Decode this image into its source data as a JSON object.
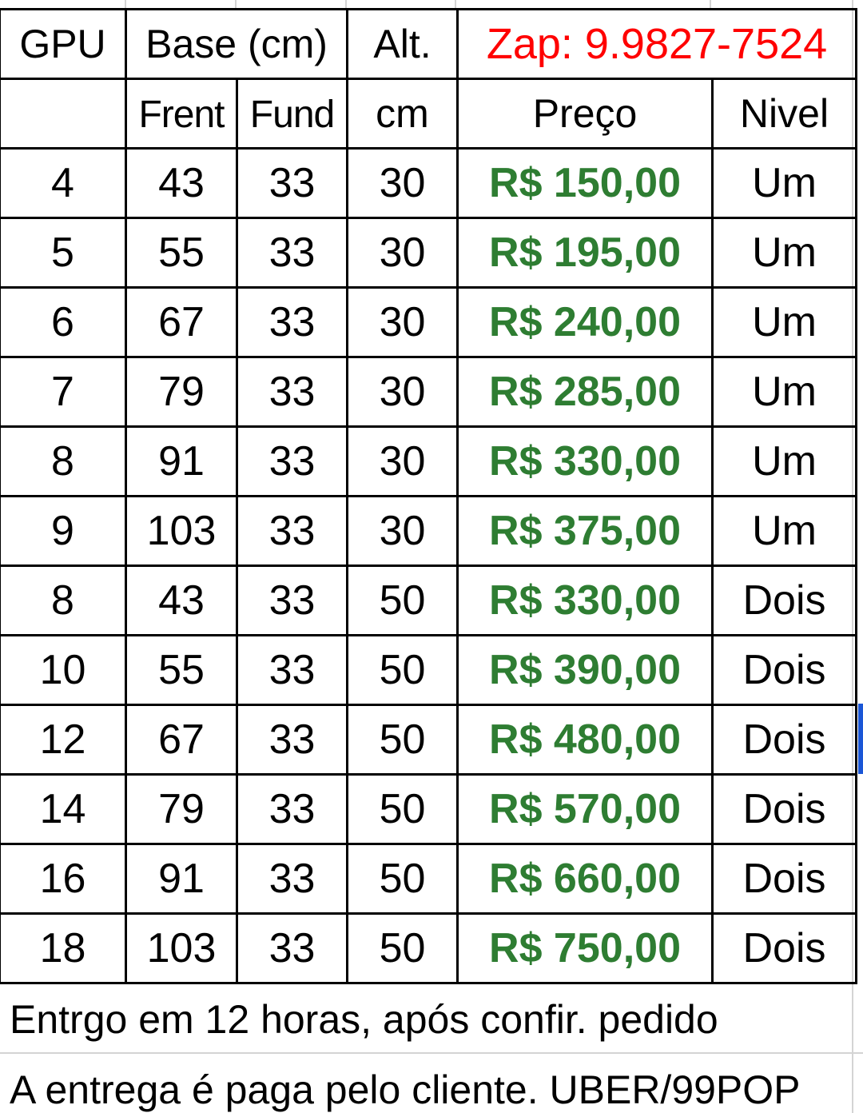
{
  "header": {
    "gpu_label": "GPU",
    "base_label": "Base (cm)",
    "alt_label": "Alt.",
    "contact": "Zap: 9.9827-7524",
    "front_label": "Frent",
    "fund_label": "Fund",
    "cm_label": "cm",
    "price_label": "Preço",
    "level_label": "Nivel"
  },
  "rows": [
    {
      "gpu": "4",
      "frente": "43",
      "fundo": "33",
      "altura": "30",
      "preco": "R$ 150,00",
      "nivel": "Um"
    },
    {
      "gpu": "5",
      "frente": "55",
      "fundo": "33",
      "altura": "30",
      "preco": "R$ 195,00",
      "nivel": "Um"
    },
    {
      "gpu": "6",
      "frente": "67",
      "fundo": "33",
      "altura": "30",
      "preco": "R$ 240,00",
      "nivel": "Um"
    },
    {
      "gpu": "7",
      "frente": "79",
      "fundo": "33",
      "altura": "30",
      "preco": "R$ 285,00",
      "nivel": "Um"
    },
    {
      "gpu": "8",
      "frente": "91",
      "fundo": "33",
      "altura": "30",
      "preco": "R$ 330,00",
      "nivel": "Um"
    },
    {
      "gpu": "9",
      "frente": "103",
      "fundo": "33",
      "altura": "30",
      "preco": "R$ 375,00",
      "nivel": "Um"
    },
    {
      "gpu": "8",
      "frente": "43",
      "fundo": "33",
      "altura": "50",
      "preco": "R$ 330,00",
      "nivel": "Dois"
    },
    {
      "gpu": "10",
      "frente": "55",
      "fundo": "33",
      "altura": "50",
      "preco": "R$ 390,00",
      "nivel": "Dois"
    },
    {
      "gpu": "12",
      "frente": "67",
      "fundo": "33",
      "altura": "50",
      "preco": "R$ 480,00",
      "nivel": "Dois"
    },
    {
      "gpu": "14",
      "frente": "79",
      "fundo": "33",
      "altura": "50",
      "preco": "R$ 570,00",
      "nivel": "Dois"
    },
    {
      "gpu": "16",
      "frente": "91",
      "fundo": "33",
      "altura": "50",
      "preco": "R$ 660,00",
      "nivel": "Dois"
    },
    {
      "gpu": "18",
      "frente": "103",
      "fundo": "33",
      "altura": "50",
      "preco": "R$ 750,00",
      "nivel": "Dois"
    }
  ],
  "notes": {
    "delivery_time": "Entrgo em 12 horas, após confir. pedido",
    "delivery_cost": "A entrega é paga pelo cliente. UBER/99POP"
  },
  "colors": {
    "contact": "#ff0000",
    "price": "#2e7d32",
    "selection": "#1a56d6",
    "gridline": "#d4d4d4"
  }
}
